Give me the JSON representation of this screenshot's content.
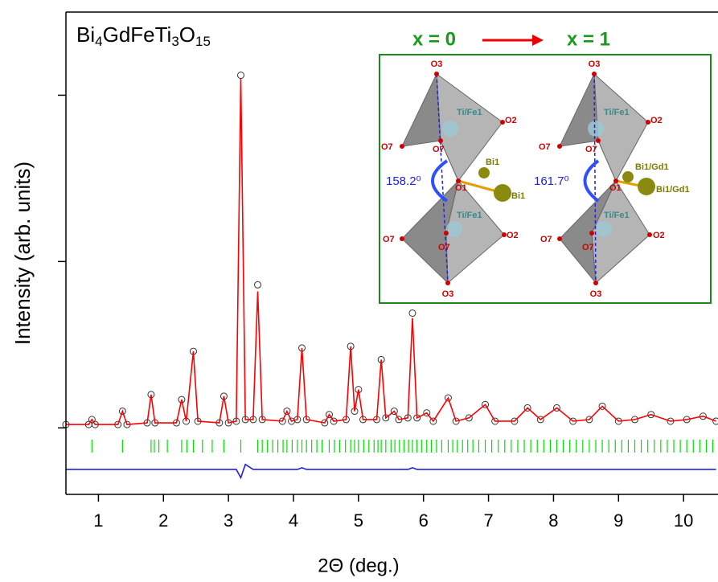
{
  "chart_data": {
    "type": "line",
    "formula": [
      "Bi",
      "4",
      "GdFeTi",
      "3",
      "O",
      "15"
    ],
    "xlabel": "2Θ (deg.)",
    "ylabel": "Intensity (arb. units)",
    "xlim": [
      0.5,
      10.53
    ],
    "xticks": [
      1,
      2,
      3,
      4,
      5,
      6,
      7,
      8,
      9,
      10
    ],
    "ylim": [
      -0.4,
      2.5
    ],
    "yticks": [
      0,
      1,
      2
    ],
    "x": [
      0.5,
      0.85,
      0.9,
      0.95,
      1.3,
      1.37,
      1.44,
      1.75,
      1.81,
      1.87,
      2.2,
      2.28,
      2.35,
      2.46,
      2.53,
      2.86,
      2.93,
      3.0,
      3.12,
      3.19,
      3.26,
      3.38,
      3.45,
      3.52,
      3.83,
      3.9,
      3.97,
      4.06,
      4.13,
      4.2,
      4.48,
      4.55,
      4.62,
      4.81,
      4.88,
      4.94,
      5.0,
      5.07,
      5.28,
      5.35,
      5.42,
      5.55,
      5.62,
      5.76,
      5.83,
      5.9,
      6.05,
      6.15,
      6.38,
      6.5,
      6.7,
      6.95,
      7.1,
      7.4,
      7.6,
      7.8,
      8.05,
      8.3,
      8.55,
      8.75,
      9.0,
      9.25,
      9.5,
      9.8,
      10.05,
      10.3,
      10.5
    ],
    "series": [
      {
        "style": "markers",
        "color": "#333333",
        "values": [
          0.02,
          0.02,
          0.05,
          0.02,
          0.02,
          0.1,
          0.02,
          0.03,
          0.2,
          0.03,
          0.03,
          0.17,
          0.04,
          0.46,
          0.04,
          0.03,
          0.19,
          0.03,
          0.04,
          2.12,
          0.05,
          0.05,
          0.86,
          0.05,
          0.04,
          0.1,
          0.04,
          0.05,
          0.48,
          0.05,
          0.03,
          0.08,
          0.04,
          0.05,
          0.49,
          0.1,
          0.23,
          0.05,
          0.05,
          0.41,
          0.06,
          0.1,
          0.05,
          0.06,
          0.69,
          0.06,
          0.09,
          0.04,
          0.18,
          0.04,
          0.06,
          0.14,
          0.04,
          0.04,
          0.12,
          0.05,
          0.12,
          0.04,
          0.05,
          0.13,
          0.04,
          0.05,
          0.08,
          0.04,
          0.05,
          0.07,
          0.04
        ]
      },
      {
        "style": "lines",
        "color": "#ff0000",
        "values": [
          0.02,
          0.02,
          0.05,
          0.02,
          0.02,
          0.1,
          0.02,
          0.03,
          0.2,
          0.03,
          0.03,
          0.17,
          0.04,
          0.46,
          0.04,
          0.03,
          0.19,
          0.03,
          0.04,
          2.1,
          0.05,
          0.05,
          0.82,
          0.05,
          0.04,
          0.1,
          0.04,
          0.05,
          0.48,
          0.05,
          0.03,
          0.08,
          0.04,
          0.05,
          0.49,
          0.1,
          0.23,
          0.05,
          0.05,
          0.41,
          0.06,
          0.1,
          0.05,
          0.06,
          0.66,
          0.06,
          0.09,
          0.04,
          0.18,
          0.04,
          0.06,
          0.14,
          0.04,
          0.04,
          0.12,
          0.05,
          0.12,
          0.04,
          0.05,
          0.13,
          0.04,
          0.05,
          0.08,
          0.04,
          0.05,
          0.07,
          0.04
        ]
      },
      {
        "style": "lines",
        "color": "#2222dd",
        "values": [
          -0.25,
          -0.25,
          -0.25,
          -0.25,
          -0.25,
          -0.25,
          -0.25,
          -0.25,
          -0.25,
          -0.25,
          -0.25,
          -0.25,
          -0.25,
          -0.25,
          -0.25,
          -0.25,
          -0.25,
          -0.25,
          -0.25,
          -0.3,
          -0.22,
          -0.25,
          -0.25,
          -0.25,
          -0.25,
          -0.25,
          -0.25,
          -0.25,
          -0.24,
          -0.25,
          -0.25,
          -0.25,
          -0.25,
          -0.25,
          -0.25,
          -0.25,
          -0.25,
          -0.25,
          -0.25,
          -0.25,
          -0.25,
          -0.25,
          -0.25,
          -0.25,
          -0.24,
          -0.25,
          -0.25,
          -0.25,
          -0.25,
          -0.25,
          -0.25,
          -0.25,
          -0.25,
          -0.25,
          -0.25,
          -0.25,
          -0.25,
          -0.25,
          -0.25,
          -0.25,
          -0.25,
          -0.25,
          -0.25,
          -0.25,
          -0.25,
          -0.25,
          -0.25
        ]
      }
    ],
    "bragg": {
      "color": "#00e000",
      "x": [
        0.9,
        1.37,
        1.81,
        1.86,
        1.93,
        2.06,
        2.28,
        2.36,
        2.46,
        2.6,
        2.75,
        2.93,
        3.19,
        3.45,
        3.52,
        3.6,
        3.68,
        3.76,
        3.84,
        3.9,
        3.98,
        4.06,
        4.13,
        4.2,
        4.28,
        4.36,
        4.44,
        4.55,
        4.63,
        4.71,
        4.8,
        4.88,
        4.94,
        5.0,
        5.08,
        5.16,
        5.24,
        5.3,
        5.35,
        5.42,
        5.5,
        5.56,
        5.63,
        5.7,
        5.77,
        5.83,
        5.9,
        5.97,
        6.05,
        6.12,
        6.2,
        6.28,
        6.38,
        6.45,
        6.52,
        6.6,
        6.68,
        6.76,
        6.85,
        6.95,
        7.05,
        7.15,
        7.25,
        7.35,
        7.45,
        7.55,
        7.65,
        7.75,
        7.85,
        7.95,
        8.05,
        8.15,
        8.25,
        8.35,
        8.45,
        8.55,
        8.65,
        8.75,
        8.85,
        8.95,
        9.05,
        9.15,
        9.25,
        9.35,
        9.45,
        9.55,
        9.65,
        9.75,
        9.85,
        9.95,
        10.05,
        10.15,
        10.25,
        10.35,
        10.45
      ]
    },
    "inset": {
      "left_title": "x = 0",
      "right_title": "x = 1",
      "panels": [
        {
          "angle": "158.2⁰",
          "labels": [
            "O3",
            "O2",
            "O7",
            "Ti/Fe1",
            "O7",
            "Bi1",
            "O1",
            "Bi1",
            "O7",
            "Ti/Fe1",
            "O7",
            "O2",
            "O3"
          ]
        },
        {
          "angle": "161.7⁰",
          "labels": [
            "O3",
            "O2",
            "O7",
            "Ti/Fe1",
            "O7",
            "Bi1/Gd1",
            "O1",
            "Bi1/Gd1",
            "O7",
            "Ti/Fe1",
            "O7",
            "O2",
            "O3"
          ]
        }
      ]
    }
  }
}
